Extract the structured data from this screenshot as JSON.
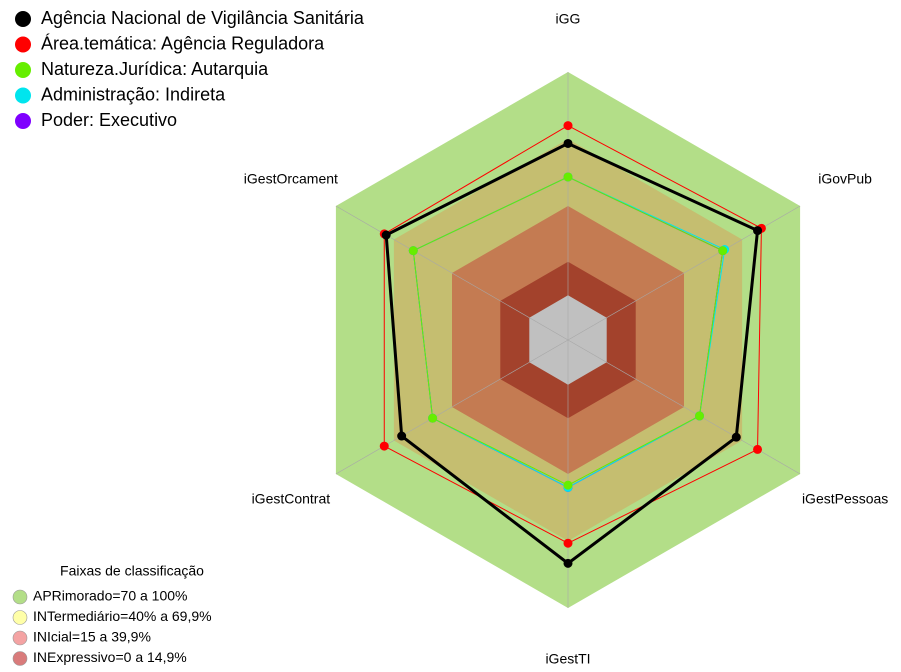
{
  "chart_data": {
    "type": "radar",
    "categories": [
      "iGG",
      "iGovPub",
      "iGestPessoas",
      "iGestTI",
      "iGestContrat",
      "iGestOrcament"
    ],
    "rlim": [
      -20,
      100
    ],
    "series": [
      {
        "name": "Agência Nacional de Vigilância Sanitária",
        "color": "#000000",
        "values": [
          68,
          78,
          67,
          80,
          66,
          74
        ]
      },
      {
        "name": "Área.temática: Agência Reguladora",
        "color": "#ff0000",
        "values": [
          76,
          80,
          78,
          71,
          75,
          75
        ]
      },
      {
        "name": "Natureza.Jurídica: Autarquia",
        "color": "#66ee00",
        "values": [
          53,
          60,
          48,
          45,
          50,
          60
        ]
      },
      {
        "name": "Administração: Indireta",
        "color": "#00e5ee",
        "values": [
          53,
          61,
          48,
          46,
          50,
          60
        ]
      },
      {
        "name": "Poder: Executivo",
        "color": "#7f00ff",
        "values": [
          53,
          60,
          48,
          46,
          50,
          60
        ]
      }
    ],
    "bands_title": "Faixas de classificação",
    "bands": [
      {
        "label": "APRimorado=70 a 100%",
        "color": "#b3de88",
        "range": [
          70,
          100
        ]
      },
      {
        "label": "INTermediário=40% a 69,9%",
        "color": "#ffffa8",
        "range": [
          40,
          70
        ]
      },
      {
        "label": "INIcial=15 a 39,9%",
        "color": "#f4a3a3",
        "range": [
          15,
          40
        ]
      },
      {
        "label": "INExpressivo=0 a 14,9%",
        "color": "#d97b7b",
        "range": [
          0,
          15
        ]
      }
    ]
  }
}
